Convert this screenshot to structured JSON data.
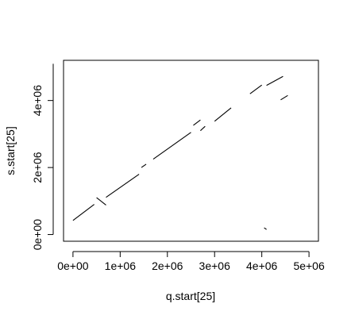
{
  "chart_data": {
    "type": "line",
    "xlabel": "q.start[25]",
    "ylabel": "s.start[25]",
    "xlim": [
      -200000,
      5200000
    ],
    "ylim": [
      -200000,
      5200000
    ],
    "grid": false,
    "x_ticks": [
      {
        "value": 0,
        "label": "0e+00"
      },
      {
        "value": 1000000,
        "label": "1e+06"
      },
      {
        "value": 2000000,
        "label": "2e+06"
      },
      {
        "value": 3000000,
        "label": "3e+06"
      },
      {
        "value": 4000000,
        "label": "4e+06"
      },
      {
        "value": 5000000,
        "label": "5e+06"
      }
    ],
    "y_ticks": [
      {
        "value": 0,
        "label": "0e+00"
      },
      {
        "value": 2000000,
        "label": "2e+06"
      },
      {
        "value": 4000000,
        "label": "4e+06"
      }
    ],
    "series": [
      {
        "values": [
          [
            0,
            420000
          ],
          [
            450000,
            900000
          ]
        ]
      },
      {
        "values": [
          [
            500000,
            1100000
          ],
          [
            700000,
            880000
          ]
        ]
      },
      {
        "values": [
          [
            700000,
            1110000
          ],
          [
            1400000,
            1800000
          ]
        ]
      },
      {
        "values": [
          [
            1450000,
            2000000
          ],
          [
            1550000,
            2100000
          ]
        ]
      },
      {
        "values": [
          [
            1700000,
            2250000
          ],
          [
            2500000,
            3050000
          ]
        ]
      },
      {
        "values": [
          [
            2550000,
            3260000
          ],
          [
            2700000,
            3420000
          ]
        ]
      },
      {
        "values": [
          [
            2700000,
            3100000
          ],
          [
            2800000,
            3230000
          ]
        ]
      },
      {
        "values": [
          [
            3000000,
            3380000
          ],
          [
            3350000,
            3780000
          ]
        ]
      },
      {
        "values": [
          [
            3750000,
            4200000
          ],
          [
            4000000,
            4460000
          ]
        ]
      },
      {
        "values": [
          [
            4100000,
            4450000
          ],
          [
            4450000,
            4720000
          ]
        ]
      },
      {
        "values": [
          [
            4400000,
            4020000
          ],
          [
            4550000,
            4150000
          ]
        ]
      },
      {
        "values": [
          [
            4050000,
            200000
          ],
          [
            4100000,
            150000
          ]
        ]
      }
    ]
  }
}
